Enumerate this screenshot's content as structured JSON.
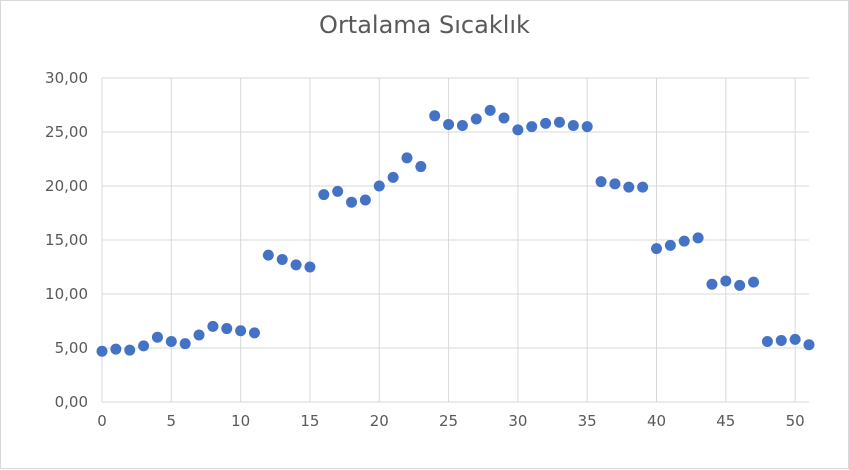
{
  "chart_data": {
    "type": "scatter",
    "title": "Ortalama Sıcaklık",
    "xlabel": "",
    "ylabel": "",
    "xlim": [
      0,
      51
    ],
    "ylim": [
      0,
      30
    ],
    "grid": true,
    "legend": "none",
    "marker_color": "#4472c4",
    "gridline_color": "#d9d9d9",
    "x_ticks": [
      "0",
      "5",
      "10",
      "15",
      "20",
      "25",
      "30",
      "35",
      "40",
      "45",
      "50"
    ],
    "y_ticks": [
      "0,00",
      "5,00",
      "10,00",
      "15,00",
      "20,00",
      "25,00",
      "30,00"
    ],
    "series": [
      {
        "x": [
          0,
          1,
          2,
          3,
          4,
          5,
          6,
          7,
          8,
          9,
          10,
          11,
          12,
          13,
          14,
          15,
          16,
          17,
          18,
          19,
          20,
          21,
          22,
          23,
          24,
          25,
          26,
          27,
          28,
          29,
          30,
          31,
          32,
          33,
          34,
          35,
          36,
          37,
          38,
          39,
          40,
          41,
          42,
          43,
          44,
          45,
          46,
          47,
          48,
          49,
          50,
          51
        ],
        "y": [
          4.7,
          4.9,
          4.8,
          5.2,
          6.0,
          5.6,
          5.4,
          6.2,
          7.0,
          6.8,
          6.6,
          6.4,
          13.6,
          13.2,
          12.7,
          12.5,
          19.2,
          19.5,
          18.5,
          18.7,
          20.0,
          20.8,
          22.6,
          21.8,
          26.5,
          25.7,
          25.6,
          26.2,
          27.0,
          26.3,
          25.2,
          25.5,
          25.8,
          25.9,
          25.6,
          25.5,
          20.4,
          20.2,
          19.9,
          19.9,
          14.2,
          14.5,
          14.9,
          15.2,
          10.9,
          11.2,
          10.8,
          11.1,
          5.6,
          5.7,
          5.8,
          5.3
        ]
      }
    ]
  }
}
